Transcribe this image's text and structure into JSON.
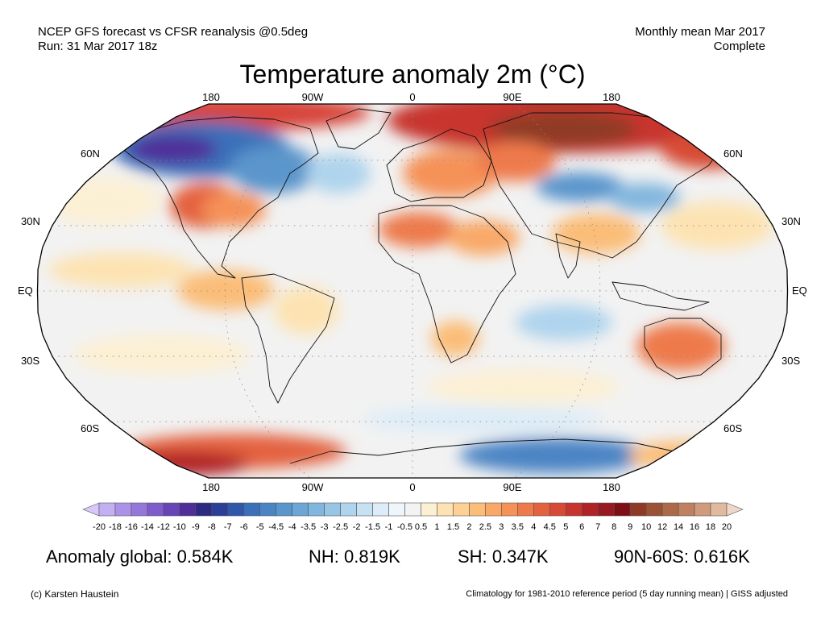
{
  "header": {
    "left_line1": "NCEP GFS forecast vs CFSR reanalysis @0.5deg",
    "left_line2": "Run: 31 Mar 2017 18z",
    "right_line1": "Monthly mean Mar 2017",
    "right_line2": "Complete"
  },
  "title": "Temperature anomaly 2m (°C)",
  "map": {
    "projection": "Robinson",
    "longitude_labels_top": [
      "180",
      "90W",
      "0",
      "90E",
      "180"
    ],
    "longitude_labels_bottom": [
      "180",
      "90W",
      "0",
      "90E",
      "180"
    ],
    "latitude_labels_left": [
      "60N",
      "30N",
      "EQ",
      "30S",
      "60S"
    ],
    "latitude_labels_right": [
      "60N",
      "30N",
      "EQ",
      "30S",
      "60S"
    ],
    "ocean_base_color": "#f2f2f2",
    "land_outline_color": "#111111"
  },
  "colorbar": {
    "labels": [
      "-20",
      "-18",
      "-16",
      "-14",
      "-12",
      "-10",
      "-9",
      "-8",
      "-7",
      "-6",
      "-5",
      "-4.5",
      "-4",
      "-3.5",
      "-3",
      "-2.5",
      "-2",
      "-1.5",
      "-1",
      "-0.5",
      "0.5",
      "1",
      "1.5",
      "2",
      "2.5",
      "3",
      "3.5",
      "4",
      "4.5",
      "5",
      "6",
      "7",
      "8",
      "9",
      "10",
      "12",
      "14",
      "16",
      "18",
      "20"
    ],
    "colors": [
      "#d6c9f7",
      "#c3b0f2",
      "#ab92e8",
      "#9577dc",
      "#7e5ccc",
      "#6844b6",
      "#4f2d9a",
      "#2d2a82",
      "#2c3f98",
      "#2f57aa",
      "#3b6fba",
      "#4b84c4",
      "#5a95cc",
      "#6ca6d5",
      "#81b6de",
      "#97c5e6",
      "#afd4ed",
      "#c6e1f2",
      "#dcecf8",
      "#eef6fb",
      "#f3f3f3",
      "#fcf0d4",
      "#fde3b2",
      "#fdd093",
      "#fbbd78",
      "#f9a867",
      "#f59258",
      "#ee7a4b",
      "#e4623f",
      "#d74b36",
      "#c7352e",
      "#b02226",
      "#981921",
      "#7f0f17",
      "#8f3a26",
      "#9c5234",
      "#ad6a48",
      "#bf8160",
      "#cf9b7c",
      "#e0b99e",
      "#efd6c6"
    ]
  },
  "stats": {
    "global_label": "Anomaly global:",
    "global_value": "0.584K",
    "nh_label": "NH:",
    "nh_value": "0.819K",
    "sh_label": "SH:",
    "sh_value": "0.347K",
    "arctic_label": "90N-60S:",
    "arctic_value": "0.616K"
  },
  "footer": {
    "left": "(c) Karsten Haustein",
    "right": "Climatology for 1981-2010 reference period (5 day running mean) | GISS adjusted"
  }
}
